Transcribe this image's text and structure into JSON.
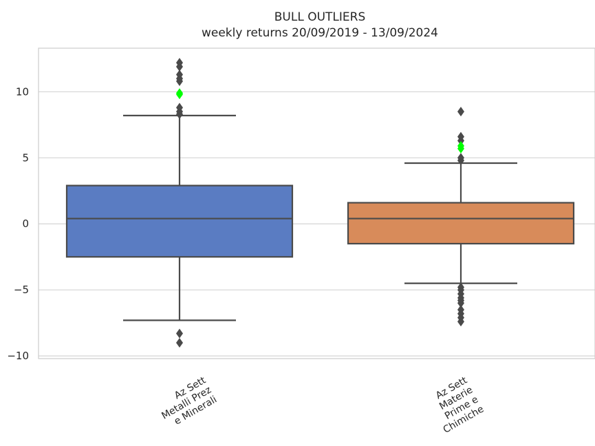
{
  "chart_data": {
    "type": "box",
    "title": "BULL OUTLIERS",
    "subtitle": "weekly returns 20/09/2019 - 13/09/2024",
    "xlabel": "",
    "ylabel": "",
    "ylim": [
      -10.2,
      13.3
    ],
    "yticks": [
      10,
      5,
      0,
      -5,
      -10
    ],
    "ytick_labels": [
      "10",
      "5",
      "0",
      "−5",
      "−10"
    ],
    "grid": true,
    "categories": [
      [
        "Az Sett",
        "Metalli Prez",
        "e Minerali"
      ],
      [
        "Az Sett",
        "Materie",
        "Prime e",
        "Chimiche"
      ]
    ],
    "boxes": [
      {
        "color": "#5a7cc2",
        "q1": -2.5,
        "median": 0.4,
        "q3": 2.9,
        "whisker_low": -7.3,
        "whisker_high": 8.2,
        "outliers": [
          12.2,
          11.9,
          11.3,
          11.0,
          10.8,
          8.8,
          8.5,
          8.3,
          -8.3,
          -9.0
        ],
        "highlight": [
          9.9,
          9.8
        ]
      },
      {
        "color": "#d88b5a",
        "q1": -1.5,
        "median": 0.4,
        "q3": 1.6,
        "whisker_low": -4.5,
        "whisker_high": 4.6,
        "outliers": [
          8.5,
          6.6,
          6.3,
          5.0,
          4.8,
          -4.8,
          -5.0,
          -5.3,
          -5.6,
          -5.8,
          -6.0,
          -6.5,
          -6.8,
          -7.1,
          -7.4
        ],
        "highlight": [
          5.9,
          5.7
        ]
      }
    ],
    "line_color": "#4a4a4a",
    "highlight_color": "#00ff00"
  }
}
